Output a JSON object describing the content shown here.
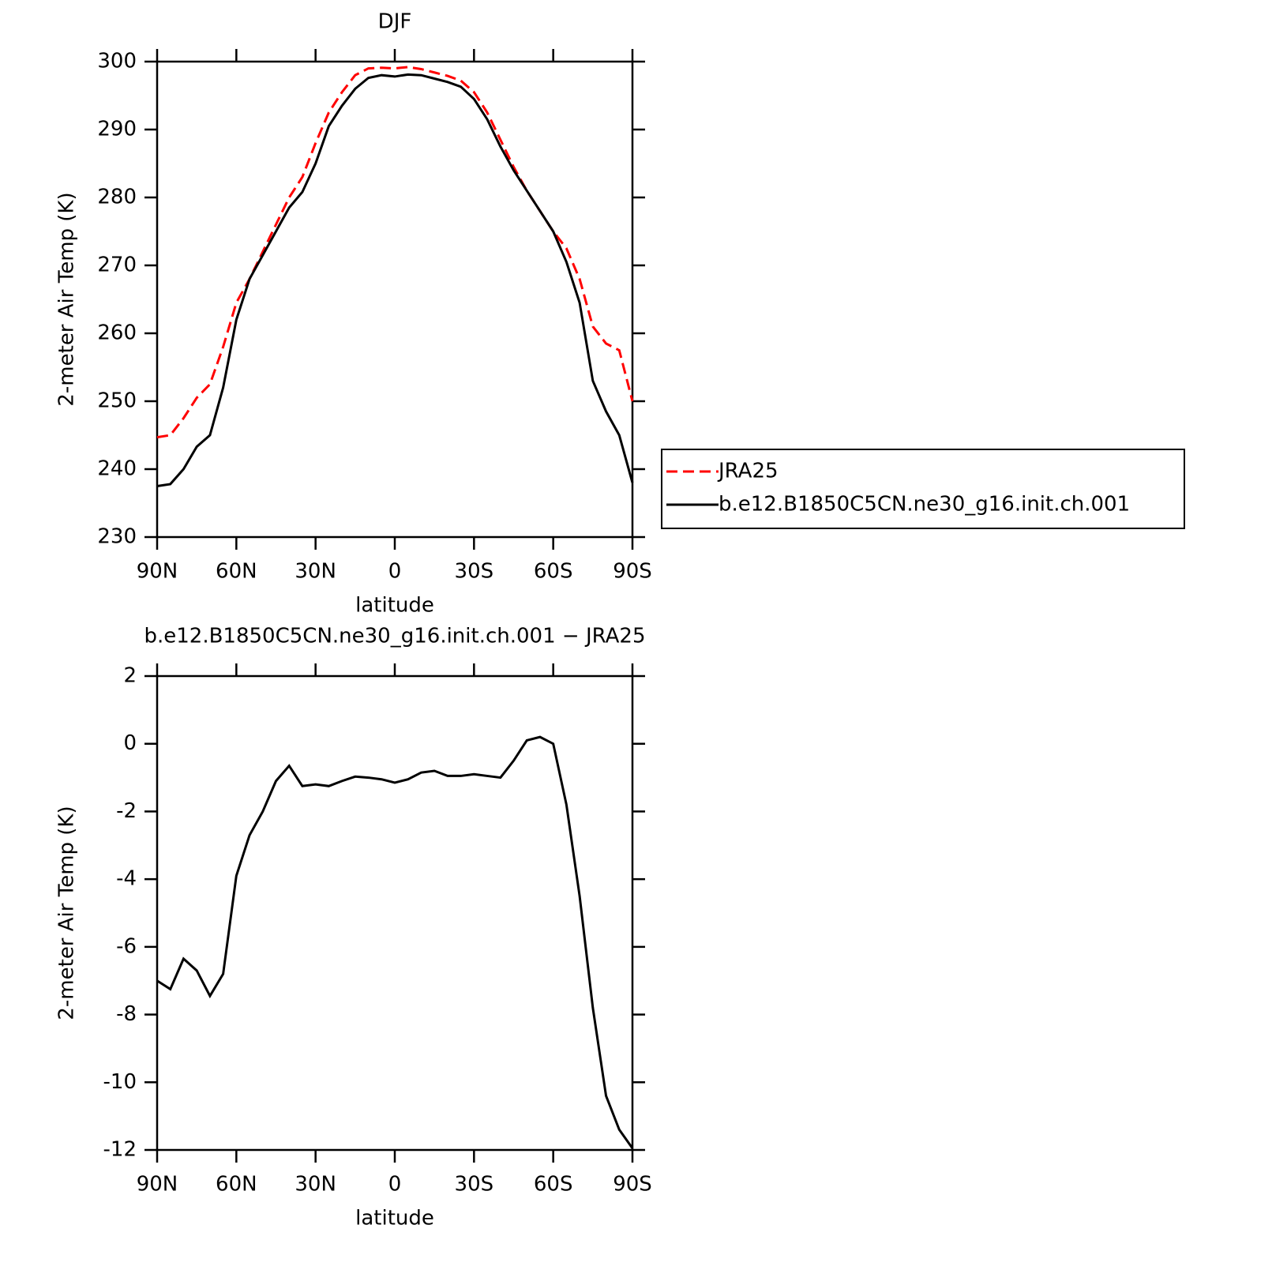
{
  "chart_data": [
    {
      "type": "line",
      "title": "DJF",
      "xlabel": "latitude",
      "ylabel": "2-meter Air Temp (K)",
      "x": [
        90,
        85,
        80,
        75,
        70,
        65,
        60,
        55,
        50,
        45,
        40,
        35,
        30,
        25,
        20,
        15,
        10,
        5,
        0,
        -5,
        -10,
        -15,
        -20,
        -25,
        -30,
        -35,
        -40,
        -45,
        -50,
        -55,
        -60,
        -65,
        -70,
        -75,
        -80,
        -85,
        -90
      ],
      "xlim": [
        90,
        -90
      ],
      "xticks": [
        {
          "value": 90,
          "label": "90N"
        },
        {
          "value": 60,
          "label": "60N"
        },
        {
          "value": 30,
          "label": "30N"
        },
        0,
        {
          "value": -30,
          "label": "30S"
        },
        {
          "value": -60,
          "label": "60S"
        },
        {
          "value": -90,
          "label": "90S"
        }
      ],
      "ylim": [
        230,
        300
      ],
      "yticks": [
        230,
        240,
        250,
        260,
        270,
        280,
        290,
        300
      ],
      "legend": "right",
      "series": [
        {
          "name": "JRA25",
          "color": "#ff0000",
          "style": "dashed",
          "values": [
            244.7,
            245,
            247.5,
            250.5,
            252.5,
            258,
            264.5,
            268,
            272,
            276,
            280,
            283,
            288,
            292.5,
            295.5,
            298,
            299,
            299.1,
            299,
            299.2,
            298.9,
            298.4,
            297.9,
            297.2,
            295.5,
            292.5,
            288.5,
            284.5,
            281,
            278,
            275,
            272.5,
            268,
            261,
            258.5,
            257.5,
            250
          ]
        },
        {
          "name": "b.e12.B1850C5CN.ne30_g16.init.ch.001",
          "color": "#000000",
          "style": "solid",
          "values": [
            237.5,
            237.8,
            240,
            243.3,
            245,
            252,
            262,
            268,
            271.5,
            275,
            278.5,
            280.8,
            285,
            290.5,
            293.5,
            296,
            297.6,
            298,
            297.8,
            298.1,
            298,
            297.5,
            297,
            296.3,
            294.5,
            291.5,
            287.5,
            284,
            281,
            278,
            275,
            270.5,
            264.5,
            253,
            248.5,
            245,
            238
          ]
        }
      ]
    },
    {
      "type": "line",
      "title": "b.e12.B1850C5CN.ne30_g16.init.ch.001 − JRA25",
      "xlabel": "latitude",
      "ylabel": "2-meter Air Temp (K)",
      "x": [
        90,
        85,
        80,
        75,
        70,
        65,
        60,
        55,
        50,
        45,
        40,
        35,
        30,
        25,
        20,
        15,
        10,
        5,
        0,
        -5,
        -10,
        -15,
        -20,
        -25,
        -30,
        -35,
        -40,
        -45,
        -50,
        -55,
        -60,
        -65,
        -70,
        -75,
        -80,
        -85,
        -90
      ],
      "xlim": [
        90,
        -90
      ],
      "xticks": [
        {
          "value": 90,
          "label": "90N"
        },
        {
          "value": 60,
          "label": "60N"
        },
        {
          "value": 30,
          "label": "30N"
        },
        0,
        {
          "value": -30,
          "label": "30S"
        },
        {
          "value": -60,
          "label": "60S"
        },
        {
          "value": -90,
          "label": "90S"
        }
      ],
      "ylim": [
        -12,
        2
      ],
      "yticks": [
        -12,
        -10,
        -8,
        -6,
        -4,
        -2,
        0,
        2
      ],
      "color": "#000000",
      "values": [
        -7.0,
        -7.25,
        -6.35,
        -6.7,
        -7.45,
        -6.8,
        -3.9,
        -2.7,
        -2.0,
        -1.1,
        -0.65,
        -1.25,
        -1.2,
        -1.25,
        -1.1,
        -0.97,
        -1.0,
        -1.05,
        -1.15,
        -1.05,
        -0.85,
        -0.8,
        -0.95,
        -0.95,
        -0.9,
        -0.95,
        -1.0,
        -0.5,
        0.1,
        0.2,
        0.0,
        -1.8,
        -4.5,
        -7.8,
        -10.4,
        -11.4,
        -11.95
      ]
    }
  ]
}
